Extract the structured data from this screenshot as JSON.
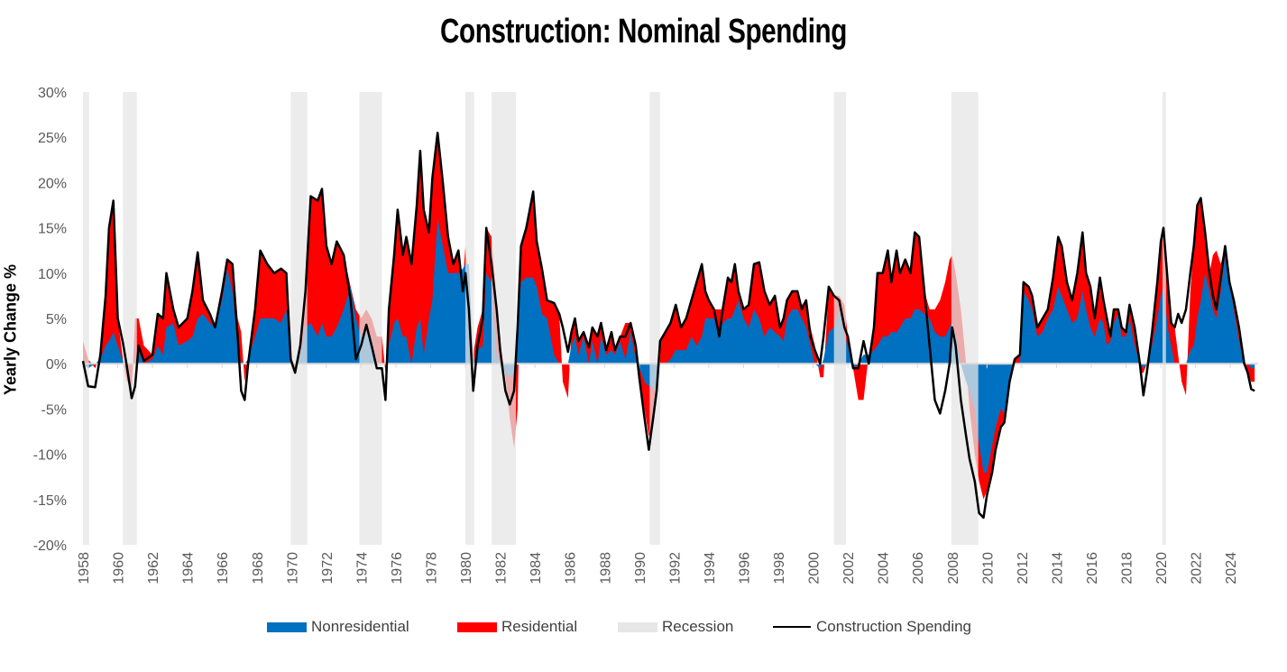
{
  "chart_data": {
    "type": "area",
    "title": "Construction: Nominal Spending",
    "xlabel": "",
    "ylabel": "Yearly Change %",
    "ylim": [
      -20,
      30
    ],
    "xlim": [
      1958,
      2025.6
    ],
    "y_ticks": [
      "30%",
      "25%",
      "20%",
      "15%",
      "10%",
      "5%",
      "0%",
      "-5%",
      "-10%",
      "-15%",
      "-20%"
    ],
    "y_tick_values": [
      30,
      25,
      20,
      15,
      10,
      5,
      0,
      -5,
      -10,
      -15,
      -20
    ],
    "x_ticks": [
      "1958",
      "1960",
      "1962",
      "1964",
      "1966",
      "1968",
      "1970",
      "1972",
      "1974",
      "1976",
      "1978",
      "1980",
      "1982",
      "1984",
      "1986",
      "1988",
      "1990",
      "1992",
      "1994",
      "1996",
      "1998",
      "2000",
      "2002",
      "2004",
      "2006",
      "2008",
      "2010",
      "2012",
      "2014",
      "2016",
      "2018",
      "2020",
      "2022",
      "2024"
    ],
    "grid": false,
    "legend_position": "bottom",
    "legend": [
      "Nonresidential",
      "Residential",
      "Recession",
      "Construction Spending"
    ],
    "colors": {
      "nonresidential": "#0070c0",
      "residential": "#ff0000",
      "recession": "#e6e6e6",
      "total": "#000000"
    },
    "recessions": [
      [
        1958.0,
        1958.35
      ],
      [
        1960.3,
        1961.1
      ],
      [
        1969.95,
        1970.9
      ],
      [
        1973.9,
        1975.2
      ],
      [
        1980.0,
        1980.5
      ],
      [
        1981.5,
        1982.9
      ],
      [
        1990.6,
        1991.2
      ],
      [
        2001.2,
        2001.9
      ],
      [
        2007.95,
        2009.5
      ],
      [
        2020.1,
        2020.3
      ]
    ],
    "points": [
      [
        1958.0,
        0.3,
        0,
        2.5
      ],
      [
        1958.3,
        -2.5,
        -0.5,
        0.5
      ],
      [
        1958.7,
        -2.6,
        0,
        -0.5
      ],
      [
        1959.0,
        1,
        0.5,
        1
      ],
      [
        1959.3,
        7.5,
        2,
        7.5
      ],
      [
        1959.5,
        15,
        2.5,
        15
      ],
      [
        1959.75,
        18,
        3.5,
        18
      ],
      [
        1960.0,
        5,
        2,
        5
      ],
      [
        1960.3,
        2.3,
        0.3,
        0.5
      ],
      [
        1960.5,
        0,
        0,
        -1.8
      ],
      [
        1960.8,
        -3.8,
        0,
        -3
      ],
      [
        1961.0,
        -2.5,
        0,
        5
      ],
      [
        1961.2,
        2,
        1.5,
        5
      ],
      [
        1961.5,
        0.3,
        0,
        2
      ],
      [
        1962.0,
        1,
        0.5,
        1
      ],
      [
        1962.3,
        5.5,
        2,
        5.5
      ],
      [
        1962.6,
        5,
        1,
        5
      ],
      [
        1962.8,
        10,
        4,
        10
      ],
      [
        1963.2,
        6,
        4.5,
        6
      ],
      [
        1963.5,
        4,
        2,
        4
      ],
      [
        1964.0,
        5,
        2.5,
        5
      ],
      [
        1964.3,
        8,
        3,
        8
      ],
      [
        1964.6,
        12.3,
        5,
        12.3
      ],
      [
        1964.9,
        7,
        5.5,
        7
      ],
      [
        1965.3,
        5.5,
        4.5,
        5.5
      ],
      [
        1965.6,
        4,
        4,
        4
      ],
      [
        1966.0,
        8,
        7,
        8
      ],
      [
        1966.3,
        11.5,
        10.5,
        11.5
      ],
      [
        1966.6,
        11,
        8,
        11
      ],
      [
        1966.9,
        3,
        2,
        5
      ],
      [
        1967.1,
        -3,
        0,
        3.5
      ],
      [
        1967.3,
        -4,
        0,
        -2
      ],
      [
        1967.5,
        0,
        0.5,
        0.5
      ],
      [
        1967.9,
        6,
        3,
        6
      ],
      [
        1968.2,
        12.5,
        5,
        12.5
      ],
      [
        1968.6,
        11,
        5,
        11
      ],
      [
        1969.0,
        10,
        5,
        10
      ],
      [
        1969.4,
        10.5,
        4.5,
        10.5
      ],
      [
        1969.7,
        10,
        6,
        10
      ],
      [
        1969.95,
        0.5,
        0,
        1
      ],
      [
        1970.2,
        -1,
        0,
        -0.5
      ],
      [
        1970.5,
        2,
        1,
        2
      ],
      [
        1970.8,
        8,
        4,
        8
      ],
      [
        1971.1,
        18.5,
        4.5,
        18.5
      ],
      [
        1971.5,
        18,
        3,
        18
      ],
      [
        1971.75,
        19.3,
        4.5,
        19.3
      ],
      [
        1972.0,
        13,
        3,
        13
      ],
      [
        1972.3,
        11,
        3,
        11
      ],
      [
        1972.6,
        13.5,
        4,
        13.5
      ],
      [
        1973.0,
        12,
        6,
        12
      ],
      [
        1973.4,
        7,
        8.5,
        8.5
      ],
      [
        1973.7,
        0.5,
        5,
        6
      ],
      [
        1974.0,
        2,
        3,
        5
      ],
      [
        1974.3,
        4.3,
        3.5,
        6
      ],
      [
        1974.6,
        2,
        3,
        5
      ],
      [
        1974.9,
        -0.5,
        0,
        3
      ],
      [
        1975.2,
        -0.5,
        0,
        3
      ],
      [
        1975.4,
        -4,
        0,
        -1
      ],
      [
        1975.6,
        6,
        2,
        6
      ],
      [
        1975.9,
        12,
        4.5,
        12
      ],
      [
        1976.1,
        17,
        5,
        17
      ],
      [
        1976.4,
        12,
        3,
        12
      ],
      [
        1976.6,
        14,
        3,
        14
      ],
      [
        1976.9,
        11,
        0,
        11
      ],
      [
        1977.2,
        17.5,
        4,
        17.5
      ],
      [
        1977.4,
        23.5,
        5,
        23.5
      ],
      [
        1977.6,
        17,
        1,
        17
      ],
      [
        1977.9,
        14.5,
        5,
        14.5
      ],
      [
        1978.1,
        20.5,
        7,
        20.5
      ],
      [
        1978.4,
        25.5,
        16,
        25.5
      ],
      [
        1978.7,
        20,
        13,
        20
      ],
      [
        1979.0,
        14,
        10,
        14
      ],
      [
        1979.3,
        11,
        10,
        11
      ],
      [
        1979.6,
        12.5,
        10,
        12.5
      ],
      [
        1979.85,
        8,
        10.5,
        9
      ],
      [
        1980.0,
        10,
        11,
        13
      ],
      [
        1980.2,
        6,
        11,
        8
      ],
      [
        1980.45,
        -3,
        0,
        1
      ],
      [
        1980.7,
        2,
        1.5,
        4
      ],
      [
        1981.0,
        5,
        2,
        6
      ],
      [
        1981.2,
        15,
        10,
        15
      ],
      [
        1981.5,
        11,
        9,
        14
      ],
      [
        1981.8,
        6,
        1,
        7
      ],
      [
        1982.0,
        1.5,
        0,
        2
      ],
      [
        1982.3,
        -3,
        -1,
        -1.5
      ],
      [
        1982.55,
        -4.5,
        -1.5,
        -6
      ],
      [
        1982.8,
        -3,
        -1,
        -9.3
      ],
      [
        1983.0,
        4,
        4,
        -5
      ],
      [
        1983.2,
        13,
        9,
        13
      ],
      [
        1983.5,
        15,
        9.5,
        15
      ],
      [
        1983.7,
        17,
        9.5,
        17
      ],
      [
        1983.9,
        19,
        9.5,
        19
      ],
      [
        1984.1,
        13.5,
        8.5,
        13.5
      ],
      [
        1984.4,
        10.5,
        5.5,
        10.5
      ],
      [
        1984.7,
        7,
        5,
        7
      ],
      [
        1985.1,
        6.7,
        1,
        6.7
      ],
      [
        1985.4,
        5.5,
        0,
        5.5
      ],
      [
        1985.6,
        4,
        0,
        -2
      ],
      [
        1985.9,
        1.3,
        0,
        -3.8
      ],
      [
        1986.1,
        3.5,
        2,
        3.5
      ],
      [
        1986.3,
        5,
        3,
        5
      ],
      [
        1986.5,
        2.5,
        1,
        2.5
      ],
      [
        1986.8,
        3.5,
        3,
        3.5
      ],
      [
        1987.1,
        1.8,
        0,
        2
      ],
      [
        1987.3,
        4,
        2.5,
        4
      ],
      [
        1987.6,
        3,
        0,
        3
      ],
      [
        1987.8,
        4.5,
        3,
        4.5
      ],
      [
        1988.1,
        1.5,
        1,
        1.5
      ],
      [
        1988.4,
        3.5,
        1.5,
        3.5
      ],
      [
        1988.6,
        1.5,
        1,
        1.5
      ],
      [
        1988.9,
        3,
        2.5,
        3
      ],
      [
        1989.2,
        3,
        0.5,
        4.5
      ],
      [
        1989.5,
        4.5,
        3.5,
        4.5
      ],
      [
        1989.8,
        2,
        0.5,
        2
      ],
      [
        1990.0,
        -1.5,
        -0.5,
        -1
      ],
      [
        1990.3,
        -6,
        -2,
        -5
      ],
      [
        1990.55,
        -9.5,
        -2.5,
        -8
      ],
      [
        1990.8,
        -6,
        -2.5,
        -7
      ],
      [
        1991.0,
        -3,
        -3.5,
        -4
      ],
      [
        1991.2,
        2.5,
        0,
        2.5
      ],
      [
        1991.5,
        3.5,
        0,
        3.5
      ],
      [
        1991.8,
        4.5,
        0.5,
        4.5
      ],
      [
        1992.1,
        6.5,
        1.5,
        6.5
      ],
      [
        1992.4,
        4,
        1.5,
        4
      ],
      [
        1992.7,
        5,
        1.5,
        5
      ],
      [
        1993.0,
        7,
        3,
        7
      ],
      [
        1993.3,
        9,
        2,
        9
      ],
      [
        1993.6,
        11,
        3,
        11
      ],
      [
        1993.8,
        8,
        5,
        8
      ],
      [
        1994.0,
        7,
        5,
        7
      ],
      [
        1994.3,
        6,
        5,
        6
      ],
      [
        1994.6,
        3,
        3.5,
        6
      ],
      [
        1994.8,
        6,
        4.5,
        6
      ],
      [
        1995.1,
        9.5,
        5,
        9.5
      ],
      [
        1995.3,
        9,
        5,
        9
      ],
      [
        1995.5,
        11,
        6,
        11
      ],
      [
        1995.7,
        8,
        7,
        8
      ],
      [
        1996.0,
        6,
        5,
        6
      ],
      [
        1996.3,
        6.5,
        4,
        6.5
      ],
      [
        1996.6,
        11,
        6,
        11
      ],
      [
        1996.9,
        11.2,
        5,
        11.2
      ],
      [
        1997.2,
        8,
        3,
        8
      ],
      [
        1997.5,
        6.5,
        4,
        6.5
      ],
      [
        1997.8,
        7.5,
        3.5,
        7.5
      ],
      [
        1998.1,
        4,
        3,
        4
      ],
      [
        1998.3,
        5,
        2.5,
        5
      ],
      [
        1998.5,
        7,
        5,
        7
      ],
      [
        1998.8,
        8,
        6,
        8
      ],
      [
        1999.1,
        8,
        6,
        8
      ],
      [
        1999.35,
        6,
        5,
        6.5
      ],
      [
        1999.6,
        7,
        4,
        7
      ],
      [
        1999.85,
        3,
        2,
        4
      ],
      [
        2000.1,
        1.5,
        0,
        2
      ],
      [
        2000.4,
        0,
        -0.5,
        -1.5
      ],
      [
        2000.6,
        3,
        0.5,
        -1.5
      ],
      [
        2000.9,
        8.5,
        3.5,
        8.5
      ],
      [
        2001.2,
        7.5,
        4,
        7.5
      ],
      [
        2001.5,
        7,
        6,
        7.5
      ],
      [
        2001.8,
        4,
        3,
        6.5
      ],
      [
        2002.0,
        3,
        2,
        3
      ],
      [
        2002.3,
        -0.5,
        -0.5,
        -0.5
      ],
      [
        2002.6,
        -0.5,
        0,
        -4
      ],
      [
        2002.9,
        2.5,
        1,
        -4
      ],
      [
        2003.2,
        0,
        1,
        1
      ],
      [
        2003.5,
        4,
        1.5,
        4
      ],
      [
        2003.7,
        10,
        2,
        10
      ],
      [
        2004.0,
        10,
        3,
        10
      ],
      [
        2004.3,
        12.5,
        3,
        12.5
      ],
      [
        2004.5,
        9,
        3.5,
        9
      ],
      [
        2004.8,
        12.5,
        3.5,
        12.5
      ],
      [
        2005.0,
        10,
        4,
        10
      ],
      [
        2005.3,
        11.5,
        5,
        11.5
      ],
      [
        2005.6,
        10,
        5,
        10
      ],
      [
        2005.85,
        14.5,
        6,
        14.5
      ],
      [
        2006.1,
        14,
        6,
        14
      ],
      [
        2006.4,
        8,
        5.5,
        8
      ],
      [
        2006.7,
        2,
        5,
        6
      ],
      [
        2007.0,
        -4,
        3.5,
        6
      ],
      [
        2007.3,
        -5.5,
        3,
        7
      ],
      [
        2007.6,
        -3,
        3,
        9
      ],
      [
        2007.85,
        0,
        4,
        11.5
      ],
      [
        2008.0,
        4,
        4.5,
        12
      ],
      [
        2008.2,
        2,
        3,
        10
      ],
      [
        2008.5,
        -4,
        0,
        6
      ],
      [
        2008.8,
        -8,
        -2,
        0
      ],
      [
        2009.0,
        -10.5,
        -3,
        -5
      ],
      [
        2009.3,
        -13,
        -5,
        -10
      ],
      [
        2009.55,
        -16.5,
        -9,
        -13
      ],
      [
        2009.8,
        -17,
        -12,
        -15
      ],
      [
        2010.0,
        -14.5,
        -12,
        -14
      ],
      [
        2010.3,
        -12,
        -9,
        -12
      ],
      [
        2010.5,
        -9.5,
        -7,
        -9.5
      ],
      [
        2010.8,
        -7,
        -5,
        -7
      ],
      [
        2011.0,
        -6.5,
        -5.5,
        -6.5
      ],
      [
        2011.3,
        -2,
        -2,
        -2
      ],
      [
        2011.6,
        0.5,
        0,
        0.5
      ],
      [
        2011.9,
        1,
        0,
        1
      ],
      [
        2012.1,
        9,
        8,
        9
      ],
      [
        2012.4,
        8.5,
        7,
        8.5
      ],
      [
        2012.6,
        7.5,
        6,
        7.5
      ],
      [
        2012.9,
        4,
        3,
        4
      ],
      [
        2013.2,
        5,
        3.5,
        5
      ],
      [
        2013.5,
        6,
        5,
        6
      ],
      [
        2013.8,
        9.5,
        6,
        9.5
      ],
      [
        2014.1,
        14,
        8.5,
        14
      ],
      [
        2014.3,
        13,
        7.5,
        13
      ],
      [
        2014.6,
        9,
        6,
        9
      ],
      [
        2014.9,
        7,
        4.5,
        7
      ],
      [
        2015.2,
        10,
        5,
        10
      ],
      [
        2015.5,
        14.5,
        8,
        14.5
      ],
      [
        2015.7,
        10,
        6,
        10
      ],
      [
        2015.95,
        8.5,
        4,
        8.5
      ],
      [
        2016.2,
        5,
        3,
        5
      ],
      [
        2016.5,
        9.5,
        5,
        9.5
      ],
      [
        2016.7,
        7,
        4.5,
        7
      ],
      [
        2016.9,
        5,
        2,
        5
      ],
      [
        2017.1,
        3,
        2.5,
        3
      ],
      [
        2017.3,
        6,
        4.5,
        6
      ],
      [
        2017.55,
        6,
        5.5,
        6
      ],
      [
        2017.75,
        4,
        3,
        4
      ],
      [
        2018.0,
        3.5,
        3,
        3.5
      ],
      [
        2018.2,
        6.5,
        5,
        6.5
      ],
      [
        2018.5,
        4,
        2,
        4
      ],
      [
        2018.8,
        0,
        0,
        -1
      ],
      [
        2019.0,
        -3.5,
        -0.5,
        -1
      ],
      [
        2019.2,
        -1,
        0,
        0
      ],
      [
        2019.5,
        3.5,
        2,
        3.5
      ],
      [
        2019.8,
        9,
        5,
        9
      ],
      [
        2020.0,
        13.5,
        7.5,
        13.5
      ],
      [
        2020.15,
        15,
        8.5,
        15
      ],
      [
        2020.4,
        9,
        4,
        9
      ],
      [
        2020.6,
        4.5,
        2,
        4.5
      ],
      [
        2020.8,
        4,
        0,
        4
      ],
      [
        2021.0,
        5.5,
        0,
        1
      ],
      [
        2021.2,
        4.5,
        0,
        -2
      ],
      [
        2021.45,
        6,
        0,
        -3.5
      ],
      [
        2021.7,
        10,
        1.5,
        8
      ],
      [
        2021.9,
        13,
        2,
        13
      ],
      [
        2022.1,
        17.5,
        5,
        17.5
      ],
      [
        2022.3,
        18.3,
        7,
        18.3
      ],
      [
        2022.55,
        14.5,
        10,
        14.5
      ],
      [
        2022.8,
        10,
        8,
        10
      ],
      [
        2023.0,
        7.5,
        6,
        12
      ],
      [
        2023.2,
        6,
        5,
        12.5
      ],
      [
        2023.45,
        9.5,
        8,
        11
      ],
      [
        2023.7,
        13,
        12,
        13
      ],
      [
        2023.95,
        9,
        9,
        9
      ],
      [
        2024.2,
        7,
        6,
        7
      ],
      [
        2024.5,
        4,
        2.5,
        4
      ],
      [
        2024.8,
        0,
        0,
        0.5
      ],
      [
        2025.0,
        -1,
        0,
        -1
      ],
      [
        2025.2,
        -2.8,
        -0.5,
        -2
      ],
      [
        2025.4,
        -3,
        -0.5,
        -2
      ]
    ],
    "points_columns": [
      "year",
      "construction_spending",
      "nonresidential",
      "residential"
    ]
  }
}
